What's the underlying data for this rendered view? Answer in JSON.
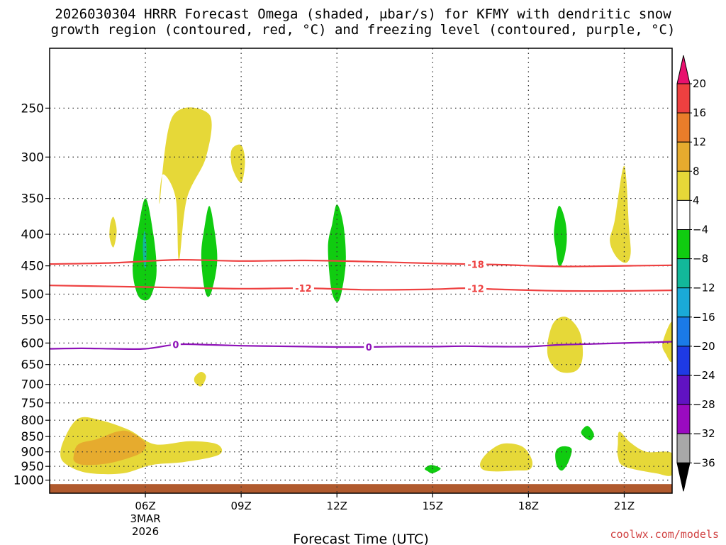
{
  "title_line1": "2026030304 HRRR Forecast Omega (shaded, μbar/s) for KFMY with dendritic snow",
  "title_line2": "growth region (contoured, red, °C) and freezing level (contoured, purple, °C)",
  "credit": "coolwx.com/models",
  "chart_data": {
    "type": "heatmap",
    "title": "2026030304 HRRR Forecast Omega (shaded, μbar/s) for KFMY with dendritic snow growth region (contoured, red, °C) and freezing level (contoured, purple, °C)",
    "xlabel": "Forecast Time (UTC)",
    "ylabel": "",
    "x_units": "hours UTC, 3 Mar 2026",
    "xlim": [
      3.0,
      22.5
    ],
    "ylim": [
      1050,
      200
    ],
    "y_scale": "log-pressure",
    "grid": true,
    "x_ticks": [
      {
        "value": 6,
        "label": "06Z",
        "sub1": "3MAR",
        "sub2": "2026"
      },
      {
        "value": 9,
        "label": "09Z"
      },
      {
        "value": 12,
        "label": "12Z"
      },
      {
        "value": 15,
        "label": "15Z"
      },
      {
        "value": 18,
        "label": "18Z"
      },
      {
        "value": 21,
        "label": "21Z"
      }
    ],
    "y_ticks": [
      250,
      300,
      350,
      400,
      450,
      500,
      550,
      600,
      650,
      700,
      750,
      800,
      850,
      900,
      950,
      1000
    ],
    "colorbar": {
      "labels": [
        "20",
        "16",
        "12",
        "8",
        "4",
        "−4",
        "−8",
        "−12",
        "−16",
        "−20",
        "−24",
        "−28",
        "−32",
        "−36"
      ],
      "colors": [
        "#e8106e",
        "#ee4040",
        "#ea7d2a",
        "#e6ab2e",
        "#e6d838",
        "#ffffff",
        "#10cc10",
        "#12b89a",
        "#1aaad8",
        "#1a7ae8",
        "#1e3ae4",
        "#6012c2",
        "#9a0ac0",
        "#a8a8a8",
        "#000000"
      ]
    },
    "omega_areas": [
      {
        "name": "upper-updraft-0630",
        "level": "4",
        "color": "#e6d838",
        "points": [
          [
            6.45,
            355
          ],
          [
            6.85,
            258
          ],
          [
            8.0,
            256
          ],
          [
            7.9,
            300
          ],
          [
            7.3,
            350
          ],
          [
            7.05,
            440
          ],
          [
            6.95,
            350
          ],
          [
            6.55,
            320
          ]
        ]
      },
      {
        "name": "small-updraft-0930",
        "level": "4",
        "color": "#e6d838",
        "points": [
          [
            8.7,
            292
          ],
          [
            9.0,
            287
          ],
          [
            9.12,
            305
          ],
          [
            9.0,
            330
          ],
          [
            8.72,
            312
          ]
        ]
      },
      {
        "name": "small-updraft-0500",
        "level": "4",
        "color": "#e6d838",
        "points": [
          [
            4.9,
            385
          ],
          [
            5.0,
            375
          ],
          [
            5.1,
            395
          ],
          [
            5.0,
            420
          ],
          [
            4.88,
            405
          ]
        ]
      },
      {
        "name": "downdraft-0600",
        "level": "-4",
        "color": "#10cc10",
        "points": [
          [
            5.6,
            455
          ],
          [
            5.75,
            400
          ],
          [
            6.0,
            350
          ],
          [
            6.25,
            400
          ],
          [
            6.35,
            460
          ],
          [
            6.2,
            500
          ],
          [
            6.0,
            512
          ],
          [
            5.75,
            500
          ]
        ]
      },
      {
        "name": "downdraft-core-0600",
        "level": "-12",
        "color": "#12b89a",
        "points": [
          [
            5.92,
            420
          ],
          [
            5.97,
            395
          ],
          [
            6.03,
            415
          ],
          [
            6.02,
            450
          ],
          [
            5.96,
            450
          ]
        ]
      },
      {
        "name": "downdraft-0800",
        "level": "-4",
        "color": "#10cc10",
        "points": [
          [
            7.75,
            430
          ],
          [
            7.85,
            390
          ],
          [
            8.0,
            360
          ],
          [
            8.15,
            390
          ],
          [
            8.25,
            440
          ],
          [
            8.1,
            490
          ],
          [
            7.95,
            505
          ],
          [
            7.82,
            480
          ]
        ]
      },
      {
        "name": "downdraft-1200",
        "level": "-4",
        "color": "#10cc10",
        "points": [
          [
            11.72,
            420
          ],
          [
            11.85,
            385
          ],
          [
            12.0,
            358
          ],
          [
            12.2,
            385
          ],
          [
            12.28,
            440
          ],
          [
            12.15,
            495
          ],
          [
            12.0,
            515
          ],
          [
            11.82,
            490
          ]
        ]
      },
      {
        "name": "updraft-1700-low",
        "level": "4",
        "color": "#e6d838",
        "points": [
          [
            7.55,
            680
          ],
          [
            7.75,
            668
          ],
          [
            7.9,
            680
          ],
          [
            7.75,
            705
          ],
          [
            7.55,
            695
          ]
        ]
      },
      {
        "name": "downdraft-1900",
        "level": "-4",
        "color": "#10cc10",
        "points": [
          [
            18.8,
            395
          ],
          [
            18.95,
            360
          ],
          [
            19.15,
            380
          ],
          [
            19.2,
            410
          ],
          [
            19.1,
            440
          ],
          [
            18.95,
            450
          ],
          [
            18.85,
            420
          ]
        ]
      },
      {
        "name": "updraft-2100-upper",
        "level": "4",
        "color": "#e6d838",
        "points": [
          [
            20.55,
            410
          ],
          [
            20.7,
            380
          ],
          [
            21.0,
            310
          ],
          [
            21.15,
            390
          ],
          [
            21.2,
            430
          ],
          [
            21.05,
            445
          ],
          [
            20.75,
            435
          ]
        ]
      },
      {
        "name": "updraft-1900-mid",
        "level": "4",
        "color": "#e6d838",
        "points": [
          [
            18.6,
            600
          ],
          [
            18.8,
            555
          ],
          [
            19.2,
            545
          ],
          [
            19.6,
            575
          ],
          [
            19.7,
            630
          ],
          [
            19.5,
            665
          ],
          [
            19.0,
            668
          ],
          [
            18.65,
            640
          ]
        ]
      },
      {
        "name": "updraft-right-edge",
        "level": "4",
        "color": "#e6d838",
        "points": [
          [
            22.2,
            600
          ],
          [
            22.5,
            555
          ],
          [
            22.5,
            640
          ],
          [
            22.3,
            625
          ]
        ]
      },
      {
        "name": "updraft-low-0600",
        "level": "4",
        "color": "#e6d838",
        "points": [
          [
            3.35,
            920
          ],
          [
            3.45,
            860
          ],
          [
            3.9,
            795
          ],
          [
            4.6,
            800
          ],
          [
            5.5,
            830
          ],
          [
            6.3,
            875
          ],
          [
            7.4,
            865
          ],
          [
            8.25,
            875
          ],
          [
            8.3,
            910
          ],
          [
            7.2,
            935
          ],
          [
            6.2,
            945
          ],
          [
            5.3,
            975
          ],
          [
            4.3,
            975
          ],
          [
            3.7,
            955
          ]
        ]
      },
      {
        "name": "updraft-low-core-0500",
        "level": "8",
        "color": "#e6ab2e",
        "points": [
          [
            3.75,
            915
          ],
          [
            3.9,
            875
          ],
          [
            4.5,
            858
          ],
          [
            5.1,
            835
          ],
          [
            5.5,
            835
          ],
          [
            6.0,
            870
          ],
          [
            5.9,
            900
          ],
          [
            5.5,
            920
          ],
          [
            4.8,
            940
          ],
          [
            4.1,
            945
          ],
          [
            3.8,
            935
          ]
        ]
      },
      {
        "name": "downdraft-low-1500",
        "level": "-4",
        "color": "#10cc10",
        "points": [
          [
            14.75,
            958
          ],
          [
            14.95,
            945
          ],
          [
            15.25,
            958
          ],
          [
            15.0,
            975
          ],
          [
            14.85,
            968
          ]
        ]
      },
      {
        "name": "updraft-low-1700",
        "level": "4",
        "color": "#e6d838",
        "points": [
          [
            16.5,
            935
          ],
          [
            16.75,
            900
          ],
          [
            17.2,
            873
          ],
          [
            17.8,
            882
          ],
          [
            18.1,
            925
          ],
          [
            18.05,
            960
          ],
          [
            17.6,
            965
          ],
          [
            16.9,
            968
          ],
          [
            16.55,
            960
          ]
        ]
      },
      {
        "name": "downdraft-low-1900",
        "level": "-4",
        "color": "#10cc10",
        "points": [
          [
            18.85,
            900
          ],
          [
            19.05,
            882
          ],
          [
            19.35,
            890
          ],
          [
            19.25,
            935
          ],
          [
            19.05,
            965
          ],
          [
            18.88,
            945
          ]
        ]
      },
      {
        "name": "downdraft-2000",
        "level": "-4",
        "color": "#10cc10",
        "points": [
          [
            19.65,
            835
          ],
          [
            19.85,
            817
          ],
          [
            20.05,
            842
          ],
          [
            19.95,
            862
          ],
          [
            19.75,
            852
          ]
        ]
      },
      {
        "name": "updraft-low-2100",
        "level": "4",
        "color": "#e6d838",
        "points": [
          [
            20.8,
            875
          ],
          [
            20.85,
            835
          ],
          [
            21.2,
            870
          ],
          [
            21.7,
            900
          ],
          [
            22.5,
            905
          ],
          [
            22.5,
            980
          ],
          [
            22.0,
            975
          ],
          [
            21.0,
            950
          ],
          [
            20.8,
            915
          ]
        ]
      }
    ],
    "contours": [
      {
        "name": "isotherm-minus18",
        "label": "-18",
        "color": "#ee4040",
        "label_positions": [
          16.35
        ],
        "points": [
          [
            3,
            447
          ],
          [
            5,
            445
          ],
          [
            7,
            440
          ],
          [
            9,
            442
          ],
          [
            11,
            441
          ],
          [
            13,
            443
          ],
          [
            15,
            446
          ],
          [
            17,
            448
          ],
          [
            19,
            451
          ],
          [
            21,
            450
          ],
          [
            22.5,
            449
          ]
        ]
      },
      {
        "name": "isotherm-minus12",
        "label": "-12",
        "color": "#ee4040",
        "label_positions": [
          10.95,
          16.35
        ],
        "points": [
          [
            3,
            484
          ],
          [
            5,
            486
          ],
          [
            7,
            488
          ],
          [
            9,
            490
          ],
          [
            11,
            489
          ],
          [
            13,
            492
          ],
          [
            15,
            491
          ],
          [
            16,
            489
          ],
          [
            17,
            491
          ],
          [
            19,
            494
          ],
          [
            21,
            494
          ],
          [
            22.5,
            493
          ]
        ]
      },
      {
        "name": "freezing-level-0",
        "label": "0",
        "color": "#8e12b8",
        "label_positions": [
          6.95,
          13.0
        ],
        "points": [
          [
            3,
            613
          ],
          [
            4,
            612
          ],
          [
            5,
            613
          ],
          [
            6,
            613
          ],
          [
            7,
            603
          ],
          [
            8,
            604
          ],
          [
            9,
            606
          ],
          [
            10,
            607
          ],
          [
            11,
            608
          ],
          [
            12,
            609
          ],
          [
            13,
            609
          ],
          [
            14,
            608
          ],
          [
            15,
            608
          ],
          [
            16,
            607
          ],
          [
            17,
            608
          ],
          [
            18,
            608
          ],
          [
            19,
            604
          ],
          [
            20,
            602
          ],
          [
            21,
            600
          ],
          [
            22.5,
            597
          ]
        ]
      }
    ],
    "ground_band": {
      "from": 1015,
      "to": 1050,
      "color": "#b05a2e"
    }
  }
}
